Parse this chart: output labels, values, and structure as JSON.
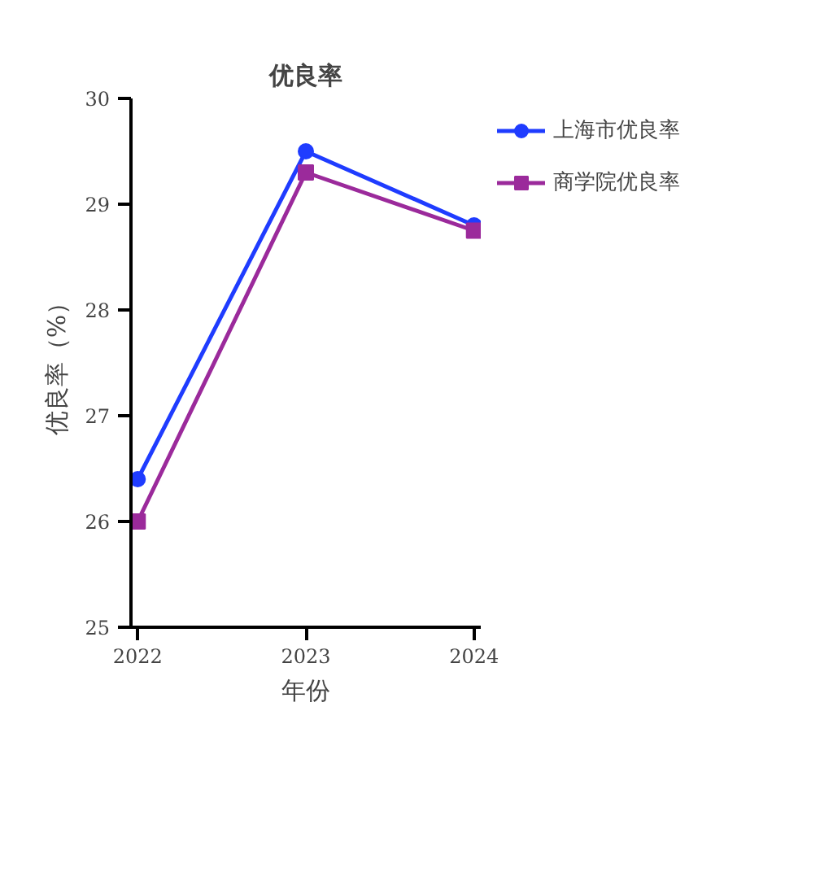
{
  "chart_data": {
    "type": "line",
    "title": "优良率",
    "xlabel": "年份",
    "ylabel": "优良率（%）",
    "categories": [
      "2022",
      "2023",
      "2024"
    ],
    "ylim": [
      25,
      30
    ],
    "yticks": [
      25,
      26,
      27,
      28,
      29,
      30
    ],
    "legend": "right",
    "series": [
      {
        "name": "上海市优良率",
        "color": "#1f3cff",
        "marker": "circle",
        "values": [
          26.4,
          29.5,
          28.8
        ]
      },
      {
        "name": "商学院优良率",
        "color": "#9b2a9b",
        "marker": "square",
        "values": [
          26.0,
          29.3,
          28.75
        ]
      }
    ]
  }
}
